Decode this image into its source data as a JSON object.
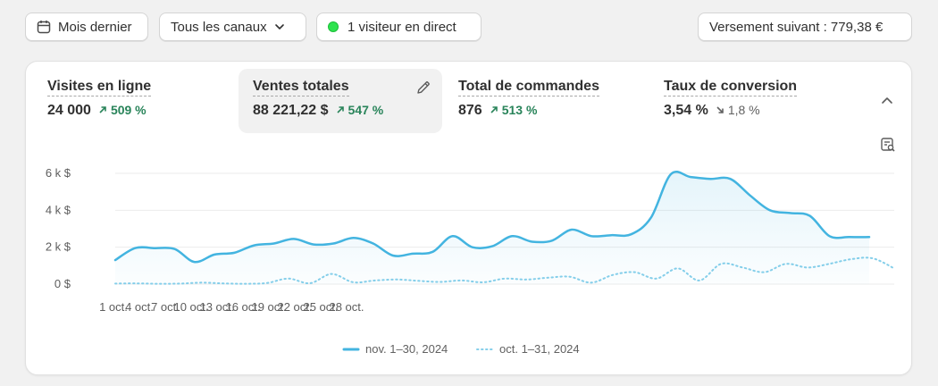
{
  "toolbar": {
    "period_label": "Mois dernier",
    "channels_label": "Tous les canaux",
    "live_label": "1 visiteur en direct",
    "payout_label": "Versement suivant : 779,38 €"
  },
  "metrics": [
    {
      "title": "Visites en ligne",
      "value": "24 000",
      "change": "509 %",
      "trend": "up"
    },
    {
      "title": "Ventes totales",
      "value": "88 221,22 $",
      "change": "547 %",
      "trend": "up",
      "selected": true
    },
    {
      "title": "Total de commandes",
      "value": "876",
      "change": "513 %",
      "trend": "up"
    },
    {
      "title": "Taux de conversion",
      "value": "3,54 %",
      "change": "1,8 %",
      "trend": "down"
    }
  ],
  "colors": {
    "primary_series": "#43b4e0",
    "comparison_series": "#86cfea",
    "positive_change": "#29845a",
    "live_dot": "#2ee34f"
  },
  "icons": {
    "period": "calendar-icon",
    "channels": "chevron-down-icon",
    "edit": "pencil-icon",
    "collapse": "chevron-up-icon",
    "report": "report-search-icon"
  },
  "chart_data": {
    "type": "line",
    "y_ticks": [
      "6 k $",
      "4 k $",
      "2 k $",
      "0 $"
    ],
    "x_ticks": [
      "1 oct.",
      "4 oct.",
      "7 oct.",
      "10 oct.",
      "13 oct.",
      "16 oct.",
      "19 oct.",
      "22 oct.",
      "25 oct.",
      "28 oct."
    ],
    "ylim": [
      0,
      6000
    ],
    "series": [
      {
        "name": "nov. 1–30, 2024",
        "style": "solid",
        "values": [
          1300,
          1950,
          1950,
          1900,
          1200,
          1600,
          1700,
          2100,
          2200,
          2450,
          2150,
          2200,
          2500,
          2200,
          1550,
          1650,
          1750,
          2600,
          2000,
          2050,
          2600,
          2300,
          2350,
          2950,
          2600,
          2650,
          2700,
          3600,
          5950,
          5800,
          5700,
          5700,
          4800,
          4000,
          3850,
          3700,
          2600,
          2550,
          2550
        ]
      },
      {
        "name": "oct. 1–31, 2024",
        "style": "dotted",
        "values": [
          30,
          40,
          20,
          30,
          80,
          40,
          20,
          60,
          300,
          50,
          550,
          100,
          200,
          250,
          180,
          120,
          200,
          100,
          300,
          250,
          350,
          400,
          80,
          500,
          650,
          300,
          850,
          200,
          1100,
          900,
          650,
          1100,
          900,
          1100,
          1350,
          1400,
          850
        ]
      }
    ]
  }
}
